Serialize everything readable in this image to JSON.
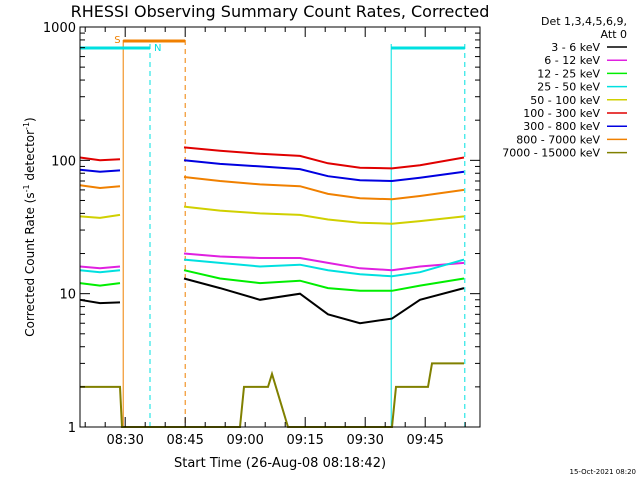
{
  "chart_data": {
    "type": "line",
    "title": "RHESSI Observing Summary Count Rates, Corrected",
    "xlabel": "Start Time (26-Aug-08 08:18:42)",
    "ylabel_main": "Corrected Count Rate (s",
    "ylabel_sup1": "-1",
    "ylabel_mid": " detector",
    "ylabel_sup2": "-1",
    "ylabel_end": ")",
    "yscale": "log",
    "ylim": [
      1,
      1000
    ],
    "xlim_minutes": [
      0,
      100
    ],
    "x_start": "08:18:42",
    "yticks": [
      {
        "value": 1,
        "label": "1"
      },
      {
        "value": 10,
        "label": "10"
      },
      {
        "value": 100,
        "label": "100"
      },
      {
        "value": 1000,
        "label": "1000"
      }
    ],
    "xticks": [
      {
        "minute": 11.3,
        "label": "08:30"
      },
      {
        "minute": 26.3,
        "label": "08:45"
      },
      {
        "minute": 41.3,
        "label": "09:00"
      },
      {
        "minute": 56.3,
        "label": "09:15"
      },
      {
        "minute": 71.3,
        "label": "09:30"
      },
      {
        "minute": 86.3,
        "label": "09:45"
      }
    ],
    "legend_header": [
      "Det 1,3,4,5,6,9,",
      "Att 0"
    ],
    "legend_position": "right",
    "series": [
      {
        "name": "3 - 6 keV",
        "color": "#000000",
        "x": [
          0,
          5,
          10,
          26,
          35,
          45,
          55,
          62,
          70,
          78,
          85,
          96
        ],
        "y": [
          9,
          8.5,
          8.6,
          13,
          11,
          9,
          10,
          7,
          6,
          6.5,
          9,
          11
        ]
      },
      {
        "name": "6 - 12 keV",
        "color": "#e020e0",
        "x": [
          0,
          5,
          10,
          26,
          35,
          45,
          55,
          62,
          70,
          78,
          85,
          96
        ],
        "y": [
          16,
          15.5,
          16,
          20,
          19,
          18.5,
          18.5,
          17,
          15.5,
          15,
          16,
          17
        ]
      },
      {
        "name": "12 - 25 keV",
        "color": "#00ee00",
        "x": [
          0,
          5,
          10,
          26,
          35,
          45,
          55,
          62,
          70,
          78,
          85,
          96
        ],
        "y": [
          12,
          11.5,
          12,
          15,
          13,
          12,
          12.5,
          11,
          10.5,
          10.5,
          11.5,
          13
        ]
      },
      {
        "name": "25 - 50 keV",
        "color": "#00e0e0",
        "x": [
          0,
          5,
          10,
          26,
          35,
          45,
          55,
          62,
          70,
          78,
          85,
          96
        ],
        "y": [
          15,
          14.5,
          15,
          18,
          17,
          16,
          16.5,
          15,
          14,
          13.5,
          14.5,
          18
        ]
      },
      {
        "name": "50 - 100 keV",
        "color": "#d0d000",
        "x": [
          0,
          5,
          10,
          26,
          35,
          45,
          55,
          62,
          70,
          78,
          85,
          96
        ],
        "y": [
          38,
          37,
          39,
          45,
          42,
          40,
          39,
          36,
          34,
          33.5,
          35,
          38
        ]
      },
      {
        "name": "100 - 300 keV",
        "color": "#e00000",
        "x": [
          0,
          5,
          10,
          26,
          35,
          45,
          55,
          62,
          70,
          78,
          85,
          96
        ],
        "y": [
          105,
          100,
          102,
          125,
          118,
          112,
          108,
          95,
          88,
          87,
          92,
          105
        ]
      },
      {
        "name": "300 - 800 keV",
        "color": "#0000e0",
        "x": [
          0,
          5,
          10,
          26,
          35,
          45,
          55,
          62,
          70,
          78,
          85,
          96
        ],
        "y": [
          85,
          82,
          84,
          100,
          94,
          90,
          86,
          76,
          71,
          70,
          74,
          82
        ]
      },
      {
        "name": "800 - 7000 keV",
        "color": "#f08000",
        "x": [
          0,
          5,
          10,
          26,
          35,
          45,
          55,
          62,
          70,
          78,
          85,
          96
        ],
        "y": [
          65,
          62,
          64,
          75,
          70,
          66,
          64,
          56,
          52,
          51,
          54,
          60
        ]
      },
      {
        "name": "7000 - 15000 keV",
        "color": "#808000",
        "x": [
          0,
          10,
          10.5,
          26,
          40,
          41,
          47,
          48,
          52,
          78,
          79,
          87,
          88,
          96
        ],
        "y": [
          2,
          2,
          1,
          1,
          1,
          2,
          2,
          2.5,
          1,
          1,
          2,
          2,
          3,
          3
        ]
      }
    ],
    "intervals": [
      {
        "label": "S",
        "x": [
          10.8,
          26.3
        ],
        "color": "#f08000"
      },
      {
        "label": "N",
        "x": [
          0,
          17.5
        ],
        "color": "#00e0e0"
      },
      {
        "label": "",
        "x": [
          77.8,
          96.2
        ],
        "color": "#00e0e0"
      }
    ],
    "timestamp": "15-Oct-2021 08:20"
  }
}
